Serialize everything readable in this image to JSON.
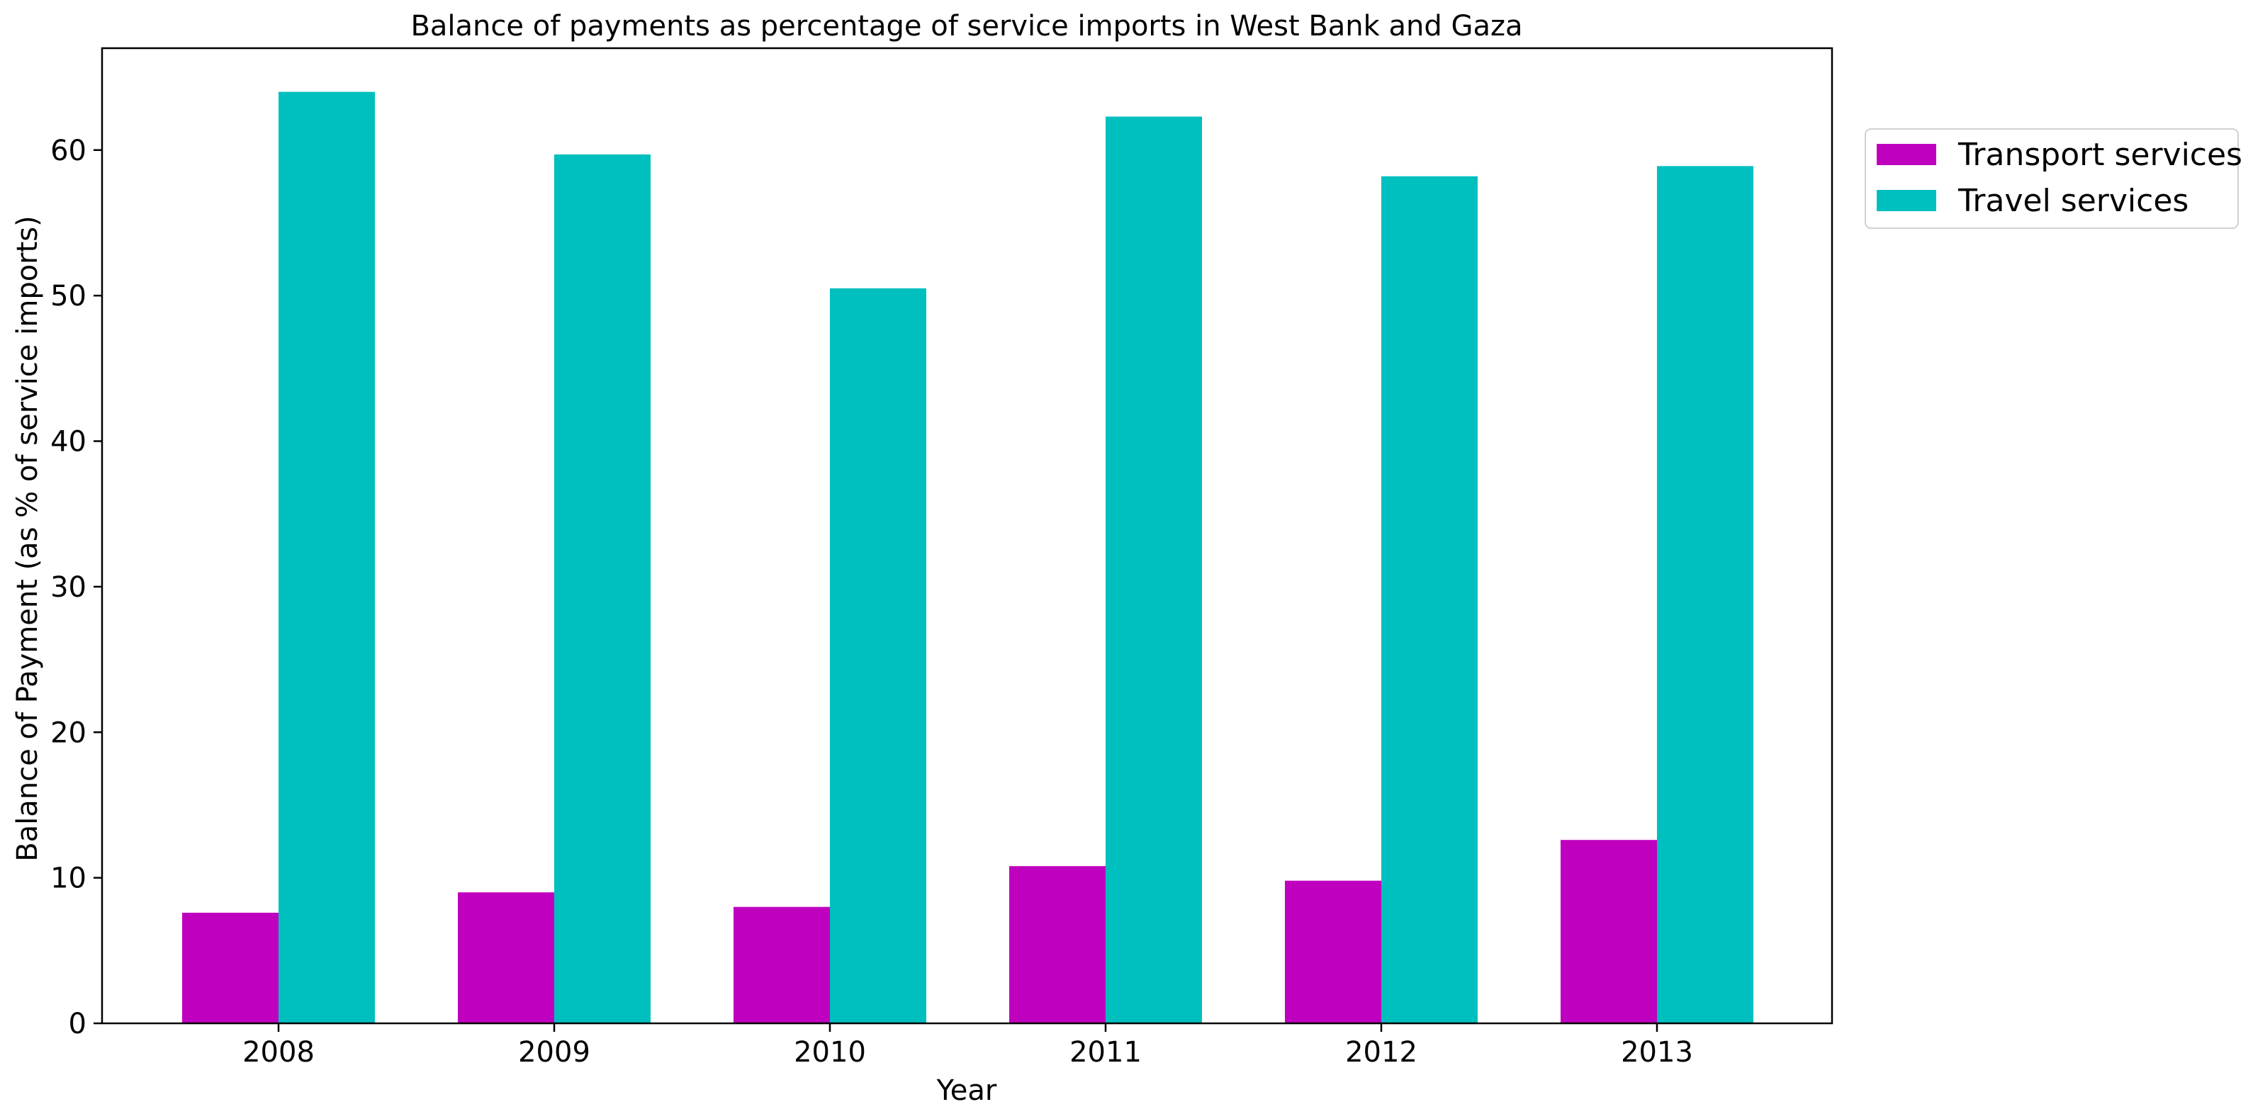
{
  "chart_data": {
    "type": "bar",
    "title": "Balance of payments as percentage of service imports in West Bank and Gaza",
    "xlabel": "Year",
    "ylabel": "Balance of Payment (as % of service imports)",
    "categories": [
      "2008",
      "2009",
      "2010",
      "2011",
      "2012",
      "2013"
    ],
    "ylim": [
      0,
      67
    ],
    "yticks": [
      0,
      10,
      20,
      30,
      40,
      50,
      60
    ],
    "grid": false,
    "legend_position": "outside-top-right",
    "series": [
      {
        "name": "Transport services",
        "color": "#bf00bf",
        "values": [
          7.6,
          9.0,
          8.0,
          10.8,
          9.8,
          12.6
        ]
      },
      {
        "name": "Travel services",
        "color": "#00bfbf",
        "values": [
          64.0,
          59.7,
          50.5,
          62.3,
          58.2,
          58.9
        ]
      }
    ]
  }
}
